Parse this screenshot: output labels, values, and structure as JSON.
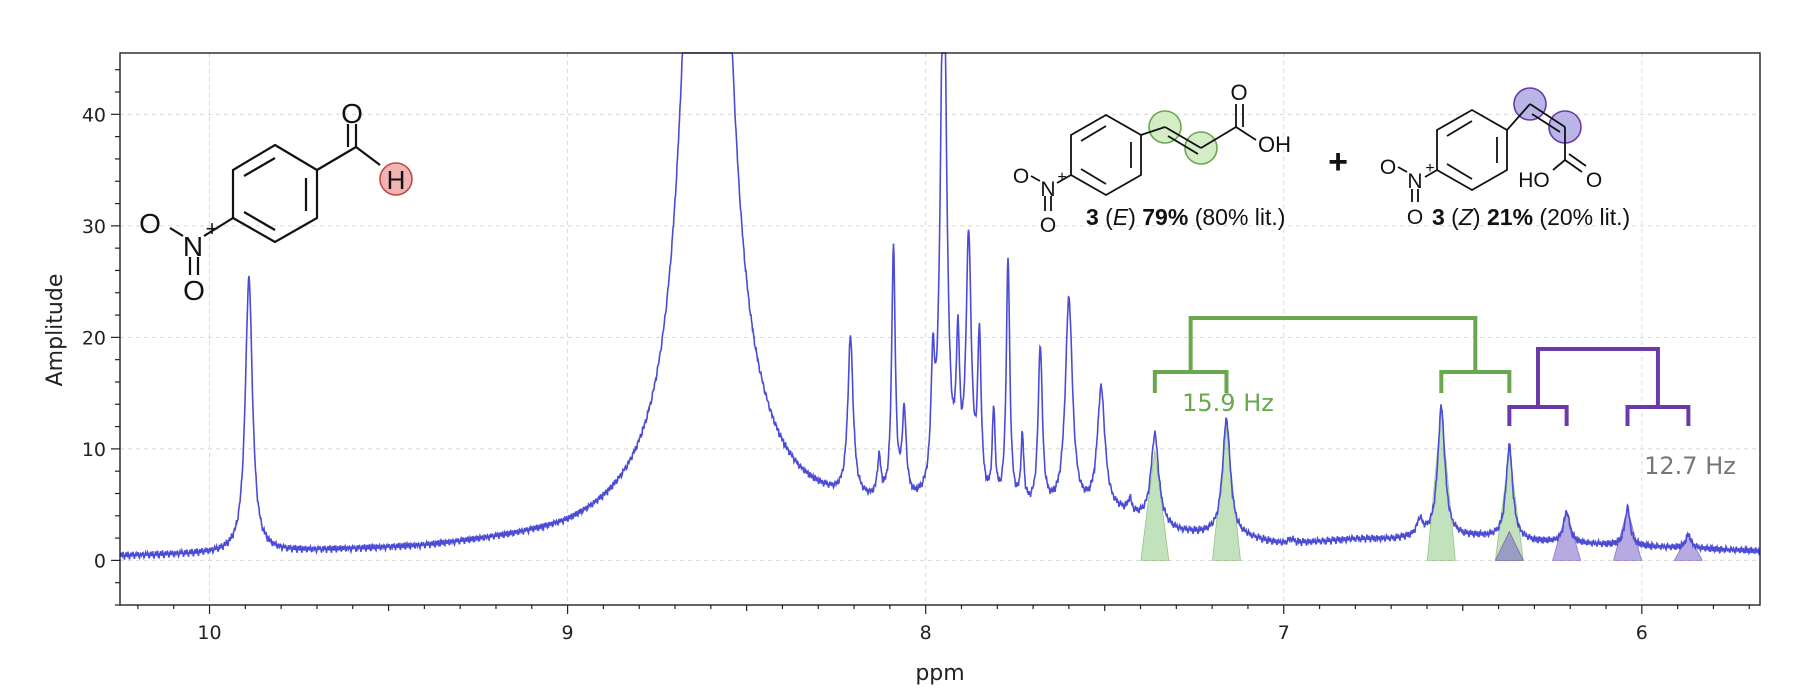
{
  "chart_data": {
    "type": "line",
    "xlabel": "ppm",
    "ylabel": "Amplitude",
    "xlim": [
      10.25,
      5.67
    ],
    "ylim": [
      -4,
      45.5
    ],
    "x_ticks": [
      10,
      9,
      8,
      7,
      6
    ],
    "y_ticks": [
      0,
      10,
      20,
      30,
      40
    ],
    "grid": true,
    "series": [
      {
        "color": "#4b4bd6",
        "baseline": [
          [
            10.25,
            0.3
          ],
          [
            9.8,
            0.6
          ],
          [
            9.4,
            0.9
          ],
          [
            9.0,
            1.8
          ],
          [
            8.8,
            3.0
          ],
          [
            8.45,
            4.5
          ],
          [
            8.35,
            4.0
          ],
          [
            8.25,
            3.8
          ],
          [
            7.45,
            3.8
          ],
          [
            7.3,
            2.3
          ],
          [
            7.1,
            1.8
          ],
          [
            7.0,
            1.3
          ],
          [
            6.8,
            1.8
          ],
          [
            6.7,
            1.8
          ],
          [
            6.6,
            2.0
          ],
          [
            6.45,
            2.0
          ],
          [
            6.3,
            1.6
          ],
          [
            6.0,
            1.2
          ],
          [
            5.67,
            0.8
          ]
        ],
        "peaks": [
          {
            "x": 9.89,
            "height": 24.6,
            "width": 0.012
          },
          {
            "x": 8.61,
            "height": 130,
            "width": 0.048
          },
          {
            "x": 8.21,
            "height": 14.2,
            "width": 0.009
          },
          {
            "x": 8.13,
            "height": 3.5,
            "width": 0.006
          },
          {
            "x": 8.09,
            "height": 22.6,
            "width": 0.006
          },
          {
            "x": 8.06,
            "height": 7.6,
            "width": 0.007
          },
          {
            "x": 7.98,
            "height": 10.0,
            "width": 0.006
          },
          {
            "x": 7.95,
            "height": 52,
            "width": 0.01
          },
          {
            "x": 7.91,
            "height": 12.0,
            "width": 0.006
          },
          {
            "x": 7.88,
            "height": 23.0,
            "width": 0.009
          },
          {
            "x": 7.85,
            "height": 14.0,
            "width": 0.006
          },
          {
            "x": 7.81,
            "height": 8.0,
            "width": 0.005
          },
          {
            "x": 7.77,
            "height": 22.0,
            "width": 0.006
          },
          {
            "x": 7.73,
            "height": 6.0,
            "width": 0.005
          },
          {
            "x": 7.68,
            "height": 14.5,
            "width": 0.007
          },
          {
            "x": 7.6,
            "height": 19.0,
            "width": 0.012
          },
          {
            "x": 7.51,
            "height": 11.0,
            "width": 0.013
          },
          {
            "x": 7.43,
            "height": 1.2,
            "width": 0.006
          },
          {
            "x": 7.36,
            "height": 8.0,
            "width": 0.013
          },
          {
            "x": 7.16,
            "height": 10.5,
            "width": 0.013
          },
          {
            "x": 6.98,
            "height": 0.4,
            "width": 0.01
          },
          {
            "x": 6.62,
            "height": 1.4,
            "width": 0.009
          },
          {
            "x": 6.56,
            "height": 11.6,
            "width": 0.012
          },
          {
            "x": 6.37,
            "height": 8.4,
            "width": 0.011
          },
          {
            "x": 6.21,
            "height": 2.8,
            "width": 0.01
          },
          {
            "x": 6.04,
            "height": 3.4,
            "width": 0.009
          },
          {
            "x": 5.87,
            "height": 1.2,
            "width": 0.009
          }
        ]
      }
    ],
    "integration_shading": [
      {
        "x": 7.36,
        "height": 9.9,
        "color": "green"
      },
      {
        "x": 7.16,
        "height": 12.0,
        "color": "green"
      },
      {
        "x": 6.56,
        "height": 13.6,
        "color": "green"
      },
      {
        "x": 6.37,
        "height": 9.7,
        "color": "green"
      },
      {
        "x": 6.37,
        "height": 2.6,
        "color": "purple"
      },
      {
        "x": 6.21,
        "height": 4.4,
        "color": "purple"
      },
      {
        "x": 6.04,
        "height": 4.6,
        "color": "purple"
      },
      {
        "x": 5.87,
        "height": 2.3,
        "color": "purple"
      }
    ],
    "couplings": [
      {
        "label": "15.9 Hz",
        "color": "#6aa84f",
        "pairs": [
          [
            7.36,
            7.16
          ],
          [
            6.56,
            6.37
          ]
        ]
      },
      {
        "label": "12.7 Hz",
        "color": "#6a3aa8",
        "label_color": "#777777",
        "pairs": [
          [
            6.37,
            6.21
          ],
          [
            6.04,
            5.87
          ]
        ]
      }
    ]
  },
  "structures": {
    "aldehyde": {
      "atoms": [
        "O",
        "N",
        "+",
        "O",
        "O",
        "H"
      ]
    },
    "e_isomer": {
      "atoms": [
        "O",
        "N",
        "+",
        "O",
        "O",
        "OH"
      ],
      "label_number": "3",
      "label_isomer": "E",
      "label_percent": "79%",
      "label_lit": "(80% lit.)"
    },
    "plus_sign": "+",
    "z_isomer": {
      "atoms": [
        "O",
        "N",
        "+",
        "O",
        "HO",
        "O"
      ],
      "label_number": "3",
      "label_isomer": "Z",
      "label_percent": "21%",
      "label_lit": "(20% lit.)"
    }
  },
  "colors": {
    "spectrum": "#4b4bd6",
    "green_mark": "#6aa84f",
    "purple_mark": "#6a3aa8",
    "aldehyde_h_highlight": "#f2b3b3",
    "e_highlight": "#d5ecc7",
    "z_highlight": "#b9b5e6"
  }
}
